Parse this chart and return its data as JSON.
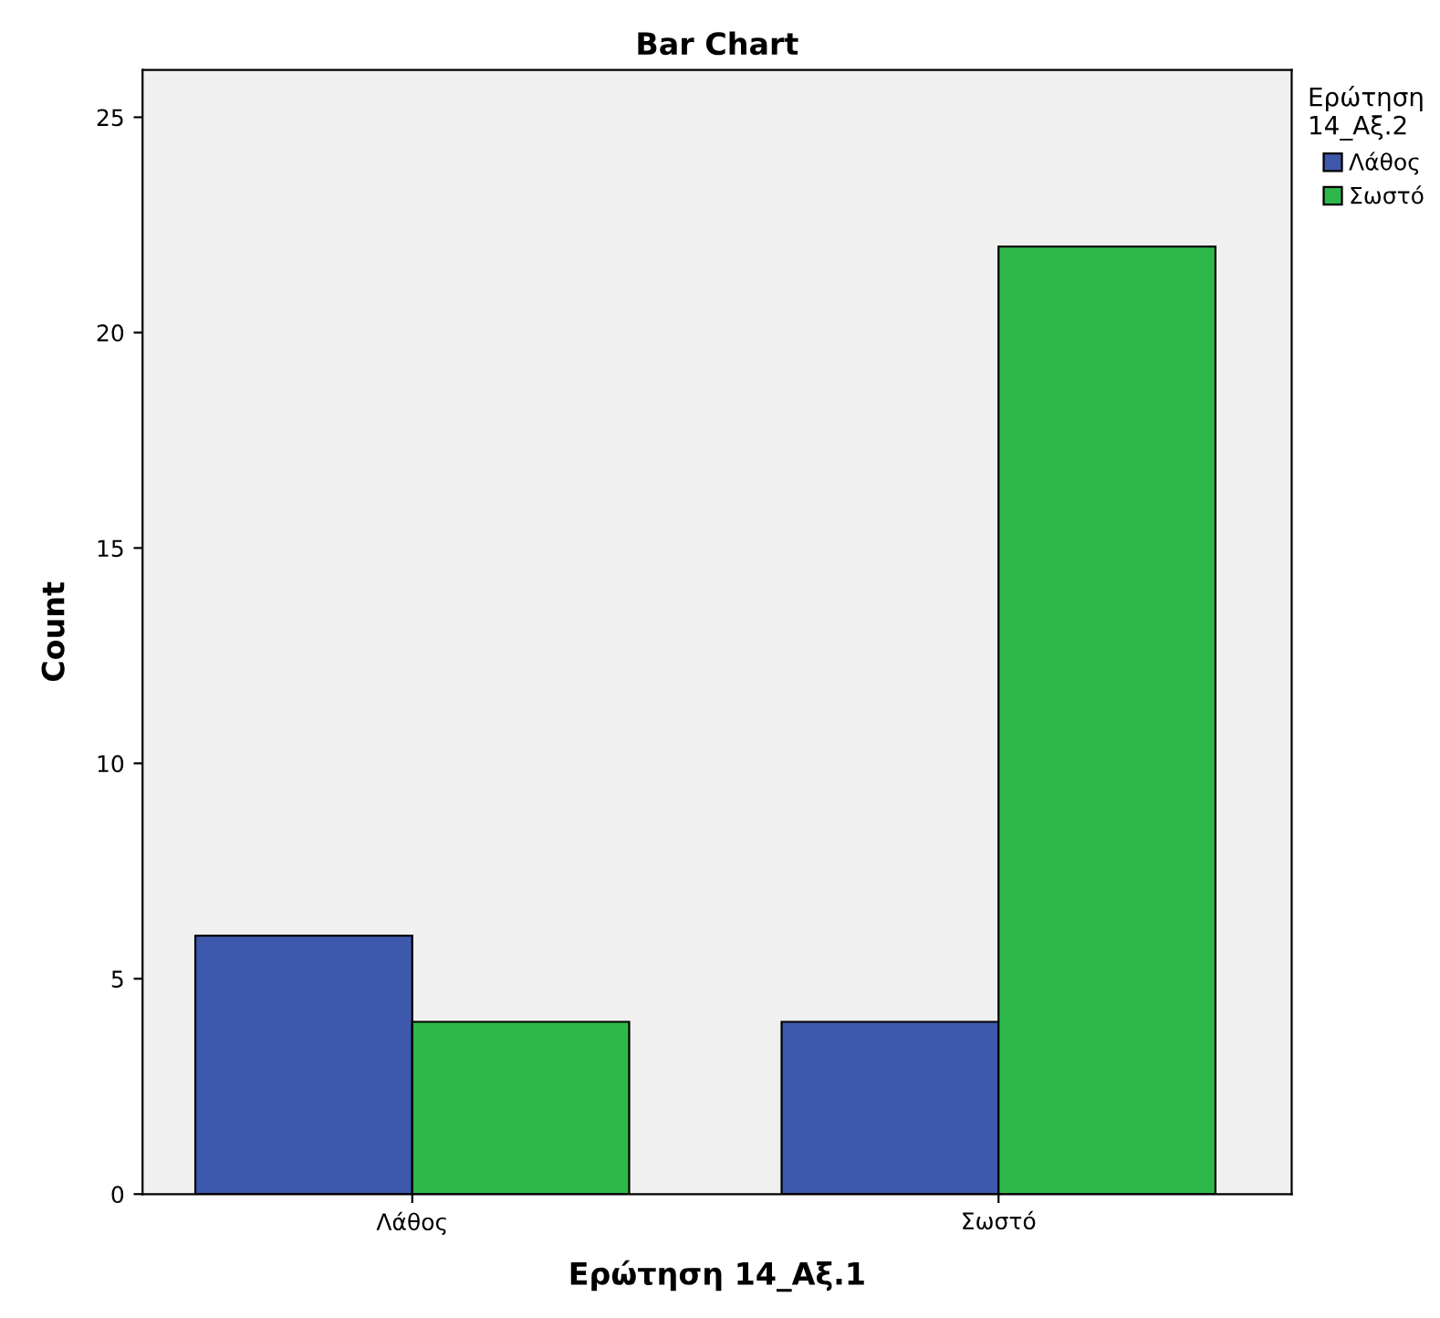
{
  "chart_data": {
    "type": "bar",
    "title": "Bar Chart",
    "xlabel": "Ερώτηση 14_Αξ.1",
    "ylabel": "Count",
    "legend_title": "Ερώτηση\n14_Αξ.2",
    "categories": [
      "Λάθος",
      "Σωστό"
    ],
    "series": [
      {
        "name": "Λάθος",
        "color": "#3e58ac",
        "values": [
          6,
          4
        ]
      },
      {
        "name": "Σωστό",
        "color": "#2fb84a",
        "values": [
          4,
          22
        ]
      }
    ],
    "ylim": [
      0,
      26.1
    ],
    "yticks": [
      0,
      5,
      10,
      15,
      20,
      25
    ],
    "grid": false,
    "legend": "top right"
  }
}
